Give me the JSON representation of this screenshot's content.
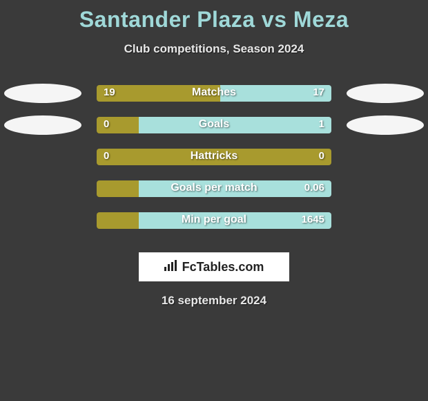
{
  "header": {
    "title": "Santander Plaza vs Meza",
    "subtitle": "Club competitions, Season 2024",
    "title_color": "#9fd8d8",
    "title_fontsize": 32,
    "subtitle_color": "#e8e8e8"
  },
  "background_color": "#3a3a3a",
  "bar": {
    "track_width": 340,
    "track_height": 24,
    "track_radius": 4,
    "left_color": "#a89a2e",
    "right_color": "#a8e0dc",
    "label_fontsize": 16,
    "value_fontsize": 15,
    "text_color": "#ffffff"
  },
  "ellipse": {
    "color": "#f5f5f5",
    "width": 112,
    "height": 28
  },
  "rows": [
    {
      "label": "Matches",
      "left_val": "19",
      "right_val": "17",
      "left_num": 19,
      "right_num": 17,
      "show_ellipses": true
    },
    {
      "label": "Goals",
      "left_val": "0",
      "right_val": "1",
      "left_num": 0,
      "right_num": 1,
      "show_ellipses": true
    },
    {
      "label": "Hattricks",
      "left_val": "0",
      "right_val": "0",
      "left_num": 0,
      "right_num": 0,
      "show_ellipses": false
    },
    {
      "label": "Goals per match",
      "left_val": "",
      "right_val": "0.06",
      "left_num": 0,
      "right_num": 0.06,
      "show_ellipses": false
    },
    {
      "label": "Min per goal",
      "left_val": "",
      "right_val": "1645",
      "left_num": 0,
      "right_num": 1645,
      "show_ellipses": false
    }
  ],
  "footer": {
    "logo_text": "FcTables.com",
    "date": "16 september 2024",
    "logo_bg": "#ffffff"
  }
}
